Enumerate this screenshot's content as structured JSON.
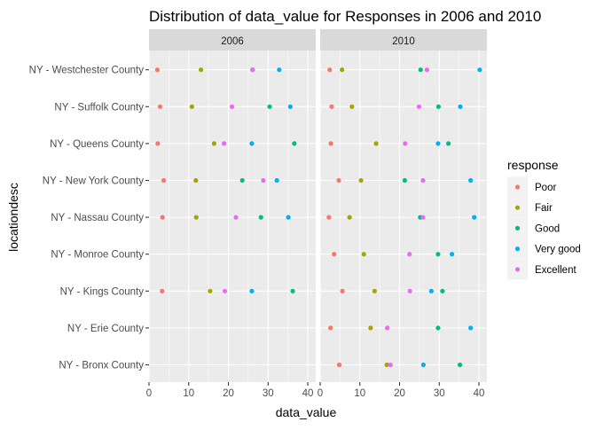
{
  "chart_data": {
    "type": "scatter",
    "title": "Distribution of data_value for Responses in 2006 and 2010",
    "xlabel": "data_value",
    "ylabel": "locationdesc",
    "xlim": [
      0,
      42
    ],
    "xticks": [
      0,
      10,
      20,
      30,
      40
    ],
    "grid": true,
    "legend_position": "right",
    "legend_title": "response",
    "facets": [
      "2006",
      "2010"
    ],
    "categories": [
      "NY - Bronx County",
      "NY - Erie County",
      "NY - Kings County",
      "NY - Monroe County",
      "NY - Nassau County",
      "NY - New York County",
      "NY - Queens County",
      "NY - Suffolk County",
      "NY - Westchester County"
    ],
    "series": [
      {
        "name": "Poor",
        "color": "#f8766d",
        "values": {
          "2006": [
            null,
            null,
            3.3,
            null,
            3.4,
            3.7,
            2.2,
            2.8,
            2.1
          ],
          "2010": [
            4.8,
            2.6,
            5.6,
            3.5,
            2.2,
            4.7,
            2.7,
            2.9,
            2.4
          ]
        }
      },
      {
        "name": "Fair",
        "color": "#a3a500",
        "values": {
          "2006": [
            null,
            null,
            15.4,
            null,
            11.9,
            11.8,
            16.4,
            10.8,
            13.1
          ],
          "2010": [
            16.8,
            12.7,
            13.7,
            11.0,
            7.4,
            10.3,
            14.1,
            8.0,
            5.5
          ]
        }
      },
      {
        "name": "Good",
        "color": "#00bf7d",
        "values": {
          "2006": [
            null,
            null,
            36.2,
            null,
            28.2,
            23.5,
            36.6,
            30.4,
            26.1
          ],
          "2010": [
            35.2,
            29.7,
            30.8,
            29.7,
            25.2,
            21.3,
            32.3,
            29.8,
            25.3
          ]
        }
      },
      {
        "name": "Very good",
        "color": "#00b0f6",
        "values": {
          "2006": [
            null,
            null,
            25.9,
            null,
            35.1,
            32.2,
            25.9,
            35.6,
            32.8
          ],
          "2010": [
            26.0,
            37.9,
            28.0,
            33.2,
            38.8,
            37.9,
            29.7,
            35.3,
            40.2
          ]
        }
      },
      {
        "name": "Excellent",
        "color": "#e76bf3",
        "values": {
          "2006": [
            null,
            null,
            19.1,
            null,
            21.9,
            28.8,
            18.9,
            20.9,
            26.1
          ],
          "2010": [
            17.7,
            16.9,
            22.6,
            22.5,
            25.9,
            25.9,
            21.4,
            24.9,
            26.9
          ]
        }
      }
    ]
  }
}
